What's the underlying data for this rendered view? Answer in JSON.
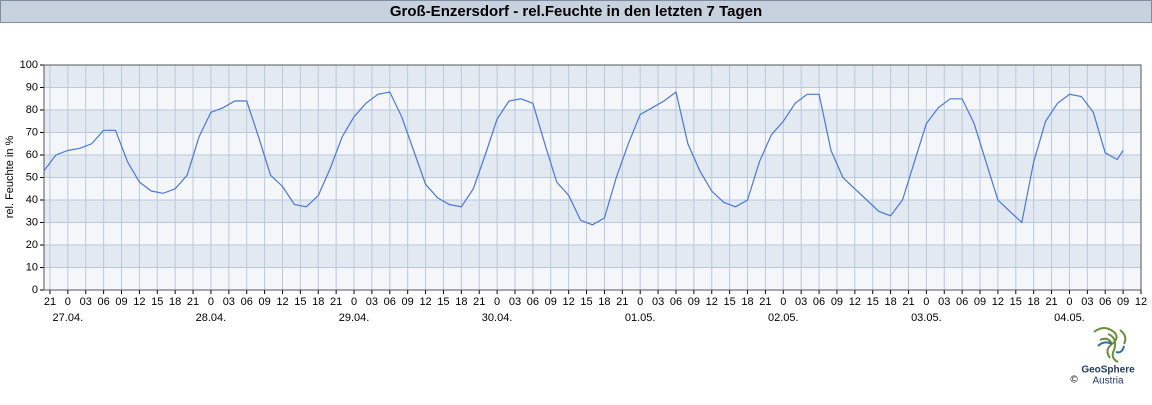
{
  "chart_data": {
    "type": "line",
    "title": "Groß-Enzersdorf - rel.Feuchte in den letzten 7 Tagen",
    "y_label": "rel. Feuchte in %",
    "x": [
      -4,
      -2,
      0,
      2,
      4,
      6,
      8,
      10,
      12,
      14,
      16,
      18,
      20,
      22,
      24,
      26,
      28,
      30,
      32,
      34,
      36,
      38,
      40,
      42,
      44,
      46,
      48,
      50,
      52,
      54,
      56,
      58,
      60,
      62,
      64,
      66,
      68,
      70,
      72,
      74,
      76,
      78,
      80,
      82,
      84,
      86,
      88,
      90,
      92,
      94,
      96,
      98,
      100,
      102,
      104,
      106,
      108,
      110,
      112,
      114,
      116,
      118,
      120,
      122,
      124,
      126,
      128,
      130,
      132,
      134,
      136,
      138,
      140,
      142,
      144,
      146,
      148,
      150,
      152,
      154,
      156,
      158,
      160,
      162,
      164,
      166,
      168,
      170,
      172,
      174,
      176,
      177
    ],
    "series": [
      {
        "name": "rel. Feuchte",
        "color": "#4a78d8",
        "values": [
          53,
          60,
          62,
          63,
          65,
          71,
          71,
          57,
          48,
          44,
          43,
          45,
          51,
          68,
          79,
          81,
          84,
          84,
          68,
          51,
          46,
          38,
          37,
          42,
          54,
          68,
          77,
          83,
          87,
          88,
          77,
          62,
          47,
          41,
          38,
          37,
          45,
          60,
          76,
          84,
          85,
          83,
          65,
          48,
          42,
          31,
          29,
          32,
          50,
          65,
          78,
          81,
          84,
          88,
          65,
          53,
          44,
          39,
          37,
          40,
          57,
          69,
          75,
          83,
          87,
          87,
          62,
          50,
          45,
          40,
          35,
          33,
          40,
          57,
          74,
          81,
          85,
          85,
          74,
          57,
          40,
          35,
          30,
          57,
          75,
          83,
          87,
          86,
          79,
          61,
          58,
          62
        ]
      }
    ],
    "xlim": [
      -4,
      180
    ],
    "xticks": [
      {
        "value": -3,
        "label": "21"
      },
      {
        "value": 0,
        "label": "0"
      },
      {
        "value": 3,
        "label": "03"
      },
      {
        "value": 6,
        "label": "06"
      },
      {
        "value": 9,
        "label": "09"
      },
      {
        "value": 12,
        "label": "12"
      },
      {
        "value": 15,
        "label": "15"
      },
      {
        "value": 18,
        "label": "18"
      },
      {
        "value": 21,
        "label": "21"
      },
      {
        "value": 24,
        "label": "0"
      },
      {
        "value": 27,
        "label": "03"
      },
      {
        "value": 30,
        "label": "06"
      },
      {
        "value": 33,
        "label": "09"
      },
      {
        "value": 36,
        "label": "12"
      },
      {
        "value": 39,
        "label": "15"
      },
      {
        "value": 42,
        "label": "18"
      },
      {
        "value": 45,
        "label": "21"
      },
      {
        "value": 48,
        "label": "0"
      },
      {
        "value": 51,
        "label": "03"
      },
      {
        "value": 54,
        "label": "06"
      },
      {
        "value": 57,
        "label": "09"
      },
      {
        "value": 60,
        "label": "12"
      },
      {
        "value": 63,
        "label": "15"
      },
      {
        "value": 66,
        "label": "18"
      },
      {
        "value": 69,
        "label": "21"
      },
      {
        "value": 72,
        "label": "0"
      },
      {
        "value": 75,
        "label": "03"
      },
      {
        "value": 78,
        "label": "06"
      },
      {
        "value": 81,
        "label": "09"
      },
      {
        "value": 84,
        "label": "12"
      },
      {
        "value": 87,
        "label": "15"
      },
      {
        "value": 90,
        "label": "18"
      },
      {
        "value": 93,
        "label": "21"
      },
      {
        "value": 96,
        "label": "0"
      },
      {
        "value": 99,
        "label": "03"
      },
      {
        "value": 102,
        "label": "06"
      },
      {
        "value": 105,
        "label": "09"
      },
      {
        "value": 108,
        "label": "12"
      },
      {
        "value": 111,
        "label": "15"
      },
      {
        "value": 114,
        "label": "18"
      },
      {
        "value": 117,
        "label": "21"
      },
      {
        "value": 120,
        "label": "0"
      },
      {
        "value": 123,
        "label": "03"
      },
      {
        "value": 126,
        "label": "06"
      },
      {
        "value": 129,
        "label": "09"
      },
      {
        "value": 132,
        "label": "12"
      },
      {
        "value": 135,
        "label": "15"
      },
      {
        "value": 138,
        "label": "18"
      },
      {
        "value": 141,
        "label": "21"
      },
      {
        "value": 144,
        "label": "0"
      },
      {
        "value": 147,
        "label": "03"
      },
      {
        "value": 150,
        "label": "06"
      },
      {
        "value": 153,
        "label": "09"
      },
      {
        "value": 156,
        "label": "12"
      },
      {
        "value": 159,
        "label": "15"
      },
      {
        "value": 162,
        "label": "18"
      },
      {
        "value": 165,
        "label": "21"
      },
      {
        "value": 168,
        "label": "0"
      },
      {
        "value": 171,
        "label": "03"
      },
      {
        "value": 174,
        "label": "06"
      },
      {
        "value": 177,
        "label": "09"
      },
      {
        "value": 180,
        "label": "12"
      }
    ],
    "date_labels": [
      {
        "value": 0,
        "label": "27.04."
      },
      {
        "value": 24,
        "label": "28.04."
      },
      {
        "value": 48,
        "label": "29.04."
      },
      {
        "value": 72,
        "label": "30.04."
      },
      {
        "value": 96,
        "label": "01.05."
      },
      {
        "value": 120,
        "label": "02.05."
      },
      {
        "value": 144,
        "label": "03.05."
      },
      {
        "value": 168,
        "label": "04.05."
      }
    ],
    "ylim": [
      0,
      100
    ],
    "yticks": [
      0,
      10,
      20,
      30,
      40,
      50,
      60,
      70,
      80,
      90,
      100
    ],
    "grid": true,
    "logo": {
      "copyright": "©",
      "name": "GeoSphere",
      "sub": "Austria"
    }
  }
}
